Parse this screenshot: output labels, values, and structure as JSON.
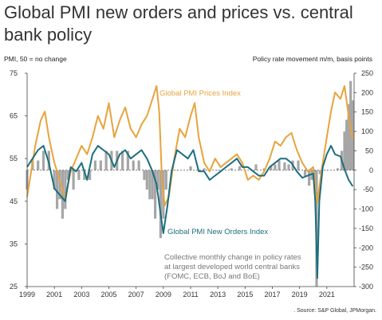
{
  "title": "Global PMI new orders and prices vs. central bank policy",
  "left_axis_caption": "PMI, 50 = no change",
  "right_axis_caption": "Policy rate movement m/m, basis points",
  "source": ". Source: S&P Global, JPMorgan.",
  "colors": {
    "prices": "#E8A33D",
    "new_orders": "#1C6E7F",
    "policy": "#A6A6A6",
    "annotation_text": "#777777"
  },
  "chart_data": {
    "type": "line",
    "x_unit": "year",
    "x_ticks": [
      "1999",
      "2001",
      "2003",
      "2005",
      "2007",
      "2009",
      "2011",
      "2013",
      "2015",
      "2017",
      "2019",
      "2021"
    ],
    "x_range": [
      1999.0,
      2023.0
    ],
    "y_left": {
      "range": [
        25,
        75
      ],
      "ticks": [
        25,
        35,
        45,
        55,
        65,
        75
      ]
    },
    "y_right": {
      "range": [
        -300,
        250
      ],
      "ticks": [
        -300,
        -250,
        -200,
        -150,
        -100,
        -50,
        0,
        50,
        100,
        150,
        200,
        250
      ]
    },
    "annotations": [
      {
        "text": "Global PMI Prices Index",
        "series": "Global PMI Prices Index"
      },
      {
        "text": "Global PMI New Orders Index",
        "series": "Global PMI New Orders Index"
      },
      {
        "text": "Collective monthly change in policy rates at largest developed world central banks (FOMC, ECB, BoJ and BoE)",
        "series": "Policy rate change"
      }
    ],
    "series": [
      {
        "name": "Global PMI Prices Index",
        "type": "line",
        "axis": "left",
        "color": "#E8A33D",
        "x": [
          1999.0,
          1999.3,
          1999.6,
          2000.0,
          2000.3,
          2000.6,
          2001.0,
          2001.4,
          2001.8,
          2002.2,
          2002.6,
          2003.0,
          2003.4,
          2003.8,
          2004.2,
          2004.6,
          2005.0,
          2005.4,
          2005.8,
          2006.2,
          2006.6,
          2007.0,
          2007.4,
          2007.8,
          2008.2,
          2008.5,
          2008.7,
          2008.9,
          2009.1,
          2009.4,
          2009.8,
          2010.2,
          2010.6,
          2011.0,
          2011.3,
          2011.6,
          2012.0,
          2012.4,
          2012.8,
          2013.2,
          2013.6,
          2014.0,
          2014.4,
          2014.8,
          2015.2,
          2015.6,
          2016.0,
          2016.4,
          2016.8,
          2017.2,
          2017.6,
          2018.0,
          2018.4,
          2018.8,
          2019.2,
          2019.6,
          2020.0,
          2020.3,
          2020.6,
          2021.0,
          2021.3,
          2021.6,
          2022.0,
          2022.3,
          2022.6,
          2022.9
        ],
        "values": [
          46.0,
          52.0,
          58.0,
          64.0,
          66.0,
          60.0,
          54.0,
          50.0,
          45.5,
          52.0,
          55.0,
          58.0,
          56.0,
          60.0,
          65.0,
          62.0,
          68.0,
          60.0,
          64.0,
          67.0,
          62.0,
          60.0,
          63.0,
          65.0,
          69.0,
          72.0,
          66.0,
          50.0,
          44.0,
          46.0,
          55.0,
          62.0,
          60.0,
          65.0,
          68.0,
          60.0,
          54.0,
          52.0,
          55.0,
          53.0,
          54.0,
          55.0,
          56.0,
          54.0,
          50.0,
          51.0,
          50.0,
          52.0,
          55.0,
          59.0,
          58.0,
          60.0,
          61.0,
          57.0,
          54.0,
          52.0,
          53.0,
          44.5,
          52.0,
          60.0,
          66.0,
          70.5,
          69.0,
          72.0,
          65.0,
          59.5
        ]
      },
      {
        "name": "Global PMI New Orders Index",
        "type": "line",
        "axis": "left",
        "color": "#1C6E7F",
        "x": [
          1999.0,
          1999.4,
          1999.8,
          2000.2,
          2000.6,
          2001.0,
          2001.4,
          2001.8,
          2002.2,
          2002.6,
          2003.0,
          2003.4,
          2003.8,
          2004.2,
          2004.6,
          2005.0,
          2005.4,
          2005.8,
          2006.2,
          2006.6,
          2007.0,
          2007.4,
          2007.8,
          2008.2,
          2008.5,
          2008.8,
          2009.0,
          2009.3,
          2009.6,
          2010.0,
          2010.4,
          2010.8,
          2011.2,
          2011.6,
          2012.0,
          2012.4,
          2012.8,
          2013.2,
          2013.6,
          2014.0,
          2014.4,
          2014.8,
          2015.2,
          2015.6,
          2016.0,
          2016.4,
          2016.8,
          2017.2,
          2017.6,
          2018.0,
          2018.4,
          2018.8,
          2019.2,
          2019.6,
          2020.0,
          2020.15,
          2020.3,
          2020.45,
          2020.7,
          2021.0,
          2021.3,
          2021.6,
          2022.0,
          2022.3,
          2022.6,
          2022.9
        ],
        "values": [
          53.0,
          55.0,
          57.0,
          58.0,
          54.0,
          48.0,
          46.5,
          45.0,
          53.0,
          52.0,
          54.0,
          50.0,
          56.0,
          58.0,
          57.0,
          56.0,
          53.0,
          56.0,
          57.0,
          55.0,
          56.0,
          57.0,
          55.0,
          52.0,
          49.0,
          42.0,
          37.5,
          44.0,
          52.0,
          57.0,
          56.0,
          55.0,
          57.0,
          52.0,
          52.0,
          50.0,
          51.0,
          52.0,
          53.0,
          54.0,
          55.0,
          53.0,
          53.0,
          52.0,
          51.0,
          51.0,
          53.0,
          54.0,
          55.0,
          55.0,
          54.0,
          52.0,
          50.5,
          51.0,
          51.5,
          45.0,
          27.0,
          45.0,
          53.0,
          56.0,
          58.0,
          56.0,
          55.5,
          52.5,
          50.0,
          48.5
        ]
      },
      {
        "name": "Policy rate change",
        "type": "bar",
        "axis": "right",
        "color": "#A6A6A6",
        "x": [
          1999.0,
          1999.4,
          1999.8,
          2000.2,
          2000.6,
          2001.0,
          2001.2,
          2001.4,
          2001.6,
          2001.8,
          2002.0,
          2002.4,
          2002.8,
          2003.2,
          2003.6,
          2004.0,
          2004.4,
          2004.8,
          2005.2,
          2005.6,
          2006.0,
          2006.4,
          2006.8,
          2007.2,
          2007.6,
          2007.8,
          2008.0,
          2008.2,
          2008.4,
          2008.6,
          2008.8,
          2009.0,
          2009.2,
          2009.6,
          2010.0,
          2011.0,
          2012.0,
          2013.0,
          2014.0,
          2014.6,
          2015.0,
          2015.8,
          2016.4,
          2016.9,
          2017.2,
          2017.5,
          2017.9,
          2018.2,
          2018.5,
          2018.9,
          2019.4,
          2019.7,
          2019.9,
          2020.1,
          2020.25,
          2020.5,
          2021.0,
          2021.8,
          2022.1,
          2022.3,
          2022.45,
          2022.6,
          2022.75,
          2022.9
        ],
        "values": [
          -50,
          25,
          25,
          50,
          50,
          -50,
          -100,
          -75,
          -125,
          -100,
          -25,
          -50,
          -25,
          -25,
          -25,
          25,
          25,
          50,
          50,
          50,
          50,
          50,
          25,
          25,
          -25,
          -50,
          -75,
          -75,
          -125,
          -50,
          -175,
          -125,
          -50,
          0,
          0,
          10,
          5,
          0,
          5,
          10,
          0,
          15,
          5,
          10,
          15,
          25,
          20,
          15,
          25,
          25,
          -15,
          -40,
          -25,
          -25,
          -300,
          -10,
          0,
          5,
          50,
          100,
          130,
          170,
          230,
          180
        ]
      }
    ]
  }
}
